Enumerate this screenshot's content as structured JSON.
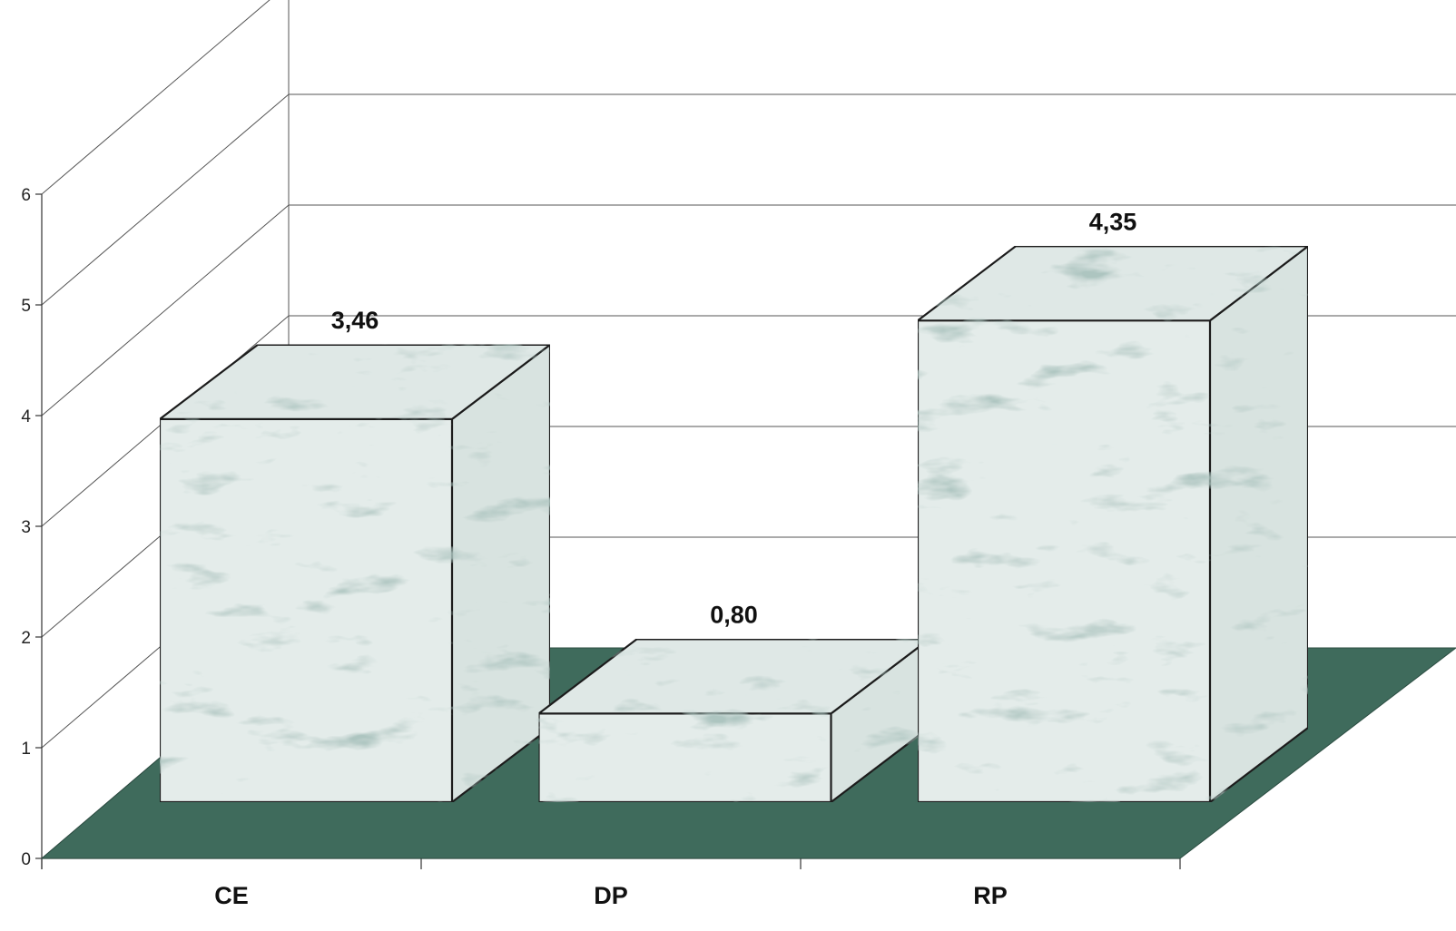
{
  "chart_data": {
    "type": "bar",
    "style": "3d",
    "categories": [
      "CE",
      "DP",
      "RP"
    ],
    "values": [
      3.46,
      0.8,
      4.35
    ],
    "data_labels": [
      "3,46",
      "0,80",
      "4,35"
    ],
    "ylim": [
      0,
      6
    ],
    "yticks": [
      0,
      1,
      2,
      3,
      4,
      5,
      6
    ],
    "ytick_labels": [
      "0",
      "1",
      "2",
      "3",
      "4",
      "5",
      "6"
    ],
    "grid": true,
    "legend": "none",
    "title": "",
    "xlabel": "",
    "ylabel": "",
    "colors": {
      "floor": "#3f6b5c",
      "bar_face": "#e4ecea",
      "bar_vein": "#6f8f88",
      "gridline": "#555555",
      "bar_edge": "#1e1e1e"
    }
  }
}
